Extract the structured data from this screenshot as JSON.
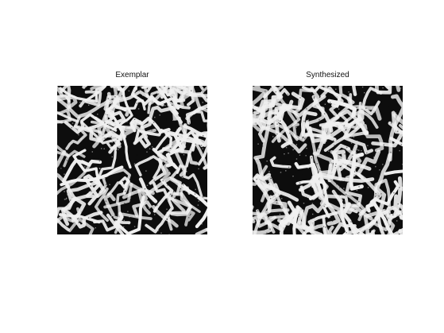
{
  "panels": [
    {
      "title": "Exemplar"
    },
    {
      "title": "Synthesized"
    }
  ],
  "colors": {
    "background": "#ffffff",
    "dark": "#0d0d0d",
    "light": "#f0f0f0"
  }
}
